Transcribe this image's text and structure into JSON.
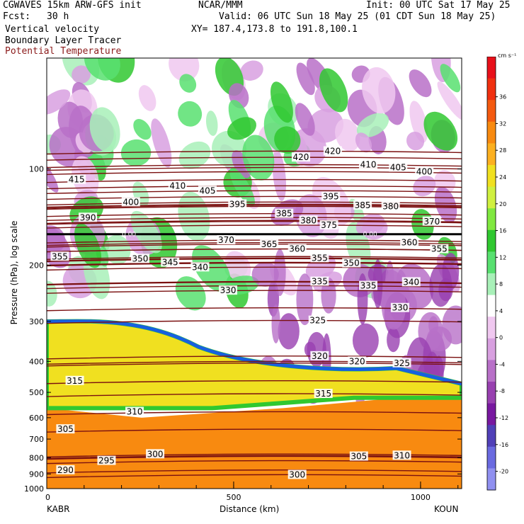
{
  "header": {
    "left_line1": "CGWAVES 15km ARW-GFS init",
    "left_line2_label": "Fcst:",
    "left_line2_value": "30 h",
    "center_line1": "NCAR/MMM",
    "right_line1": "Init: 00 UTC Sat 17 May 25",
    "right_line2": "Valid: 06 UTC Sun 18 May 25 (01 CDT Sun 18 May 25)",
    "right_line3": "XY= 187.4,173.8 to 191.8,100.1",
    "fields": [
      "Vertical velocity",
      "Boundary Layer Tracer",
      "Potential Temperature"
    ]
  },
  "colors": {
    "theta_contour": "#7a1010",
    "tracer_line": "#000000",
    "field_label_3": "#8b1a1a"
  },
  "chart_data": {
    "type": "heatmap",
    "title": "",
    "xlabel": "Distance (km)",
    "ylabel": "Pressure (hPa), log scale",
    "x_ticks": [
      0,
      500,
      1000
    ],
    "x_tick_labels": [
      "0",
      "500",
      "1000"
    ],
    "x_endpoint_labels": [
      "KABR",
      "KOUN"
    ],
    "xlim": [
      0,
      1110
    ],
    "y_scale": "log",
    "ylim": [
      1000,
      45
    ],
    "y_ticks": [
      100,
      200,
      300,
      400,
      500,
      600,
      700,
      800,
      900,
      1000
    ],
    "colorbar": {
      "unit": "cm s⁻¹",
      "tick_labels": [
        "36",
        "32",
        "28",
        "24",
        "20",
        "16",
        "12",
        "8",
        "4",
        "0",
        "-4",
        "-8",
        "-12",
        "-16",
        "-20"
      ],
      "colors": [
        "#e8101a",
        "#f03010",
        "#f45a10",
        "#f88a10",
        "#fcb020",
        "#f0e020",
        "#d0f040",
        "#80e840",
        "#30c830",
        "#58e070",
        "#a8f0b8",
        "#ffffff",
        "#f0c8f0",
        "#d8a0e0",
        "#b870c8",
        "#9840b0",
        "#7818a0",
        "#5040b8",
        "#6a6ae0",
        "#9090f0"
      ]
    },
    "theta_contours": [
      {
        "label": "415",
        "p": 108,
        "x": 80
      },
      {
        "label": "400",
        "p": 127,
        "x": 225
      },
      {
        "label": "410",
        "p": 113,
        "x": 350
      },
      {
        "label": "405",
        "p": 117,
        "x": 430
      },
      {
        "label": "395",
        "p": 129,
        "x": 510
      },
      {
        "label": "390",
        "p": 142,
        "x": 110
      },
      {
        "label": "385",
        "p": 138,
        "x": 635
      },
      {
        "label": "380",
        "p": 145,
        "x": 700
      },
      {
        "label": "375",
        "p": 150,
        "x": 755
      },
      {
        "label": "420",
        "p": 92,
        "x": 680
      },
      {
        "label": "420",
        "p": 88,
        "x": 765
      },
      {
        "label": "410",
        "p": 97,
        "x": 860
      },
      {
        "label": "405",
        "p": 99,
        "x": 940
      },
      {
        "label": "400",
        "p": 102,
        "x": 1010
      },
      {
        "label": "395",
        "p": 122,
        "x": 760
      },
      {
        "label": "385",
        "p": 130,
        "x": 845
      },
      {
        "label": "380",
        "p": 131,
        "x": 920
      },
      {
        "label": "370",
        "p": 146,
        "x": 1030
      },
      {
        "label": "370",
        "p": 167,
        "x": 480
      },
      {
        "label": "365",
        "p": 172,
        "x": 595
      },
      {
        "label": "360",
        "p": 178,
        "x": 670
      },
      {
        "label": "360",
        "p": 170,
        "x": 970
      },
      {
        "label": "355",
        "p": 188,
        "x": 35
      },
      {
        "label": "355",
        "p": 190,
        "x": 730
      },
      {
        "label": "355",
        "p": 178,
        "x": 1050
      },
      {
        "label": "350",
        "p": 191,
        "x": 250
      },
      {
        "label": "345",
        "p": 196,
        "x": 330
      },
      {
        "label": "340",
        "p": 203,
        "x": 410
      },
      {
        "label": "350",
        "p": 197,
        "x": 815
      },
      {
        "label": "340",
        "p": 226,
        "x": 975
      },
      {
        "label": "335",
        "p": 225,
        "x": 730
      },
      {
        "label": "335",
        "p": 232,
        "x": 860
      },
      {
        "label": "330",
        "p": 240,
        "x": 485
      },
      {
        "label": "330",
        "p": 272,
        "x": 945
      },
      {
        "label": "325",
        "p": 298,
        "x": 725
      },
      {
        "label": "320",
        "p": 385,
        "x": 730
      },
      {
        "label": "320",
        "p": 400,
        "x": 830
      },
      {
        "label": "325",
        "p": 405,
        "x": 950
      },
      {
        "label": "315",
        "p": 460,
        "x": 75
      },
      {
        "label": "315",
        "p": 505,
        "x": 740
      },
      {
        "label": "310",
        "p": 575,
        "x": 235
      },
      {
        "label": "310",
        "p": 788,
        "x": 950
      },
      {
        "label": "305",
        "p": 652,
        "x": 50
      },
      {
        "label": "305",
        "p": 793,
        "x": 835
      },
      {
        "label": "300",
        "p": 780,
        "x": 290
      },
      {
        "label": "300",
        "p": 905,
        "x": 670
      },
      {
        "label": "295",
        "p": 818,
        "x": 160
      },
      {
        "label": "290",
        "p": 875,
        "x": 50
      }
    ],
    "tracer_line_p": 160,
    "tracer_line_labels": [
      {
        "label": "0.00",
        "x": 220
      },
      {
        "label": "0.00",
        "x": 865
      }
    ]
  }
}
